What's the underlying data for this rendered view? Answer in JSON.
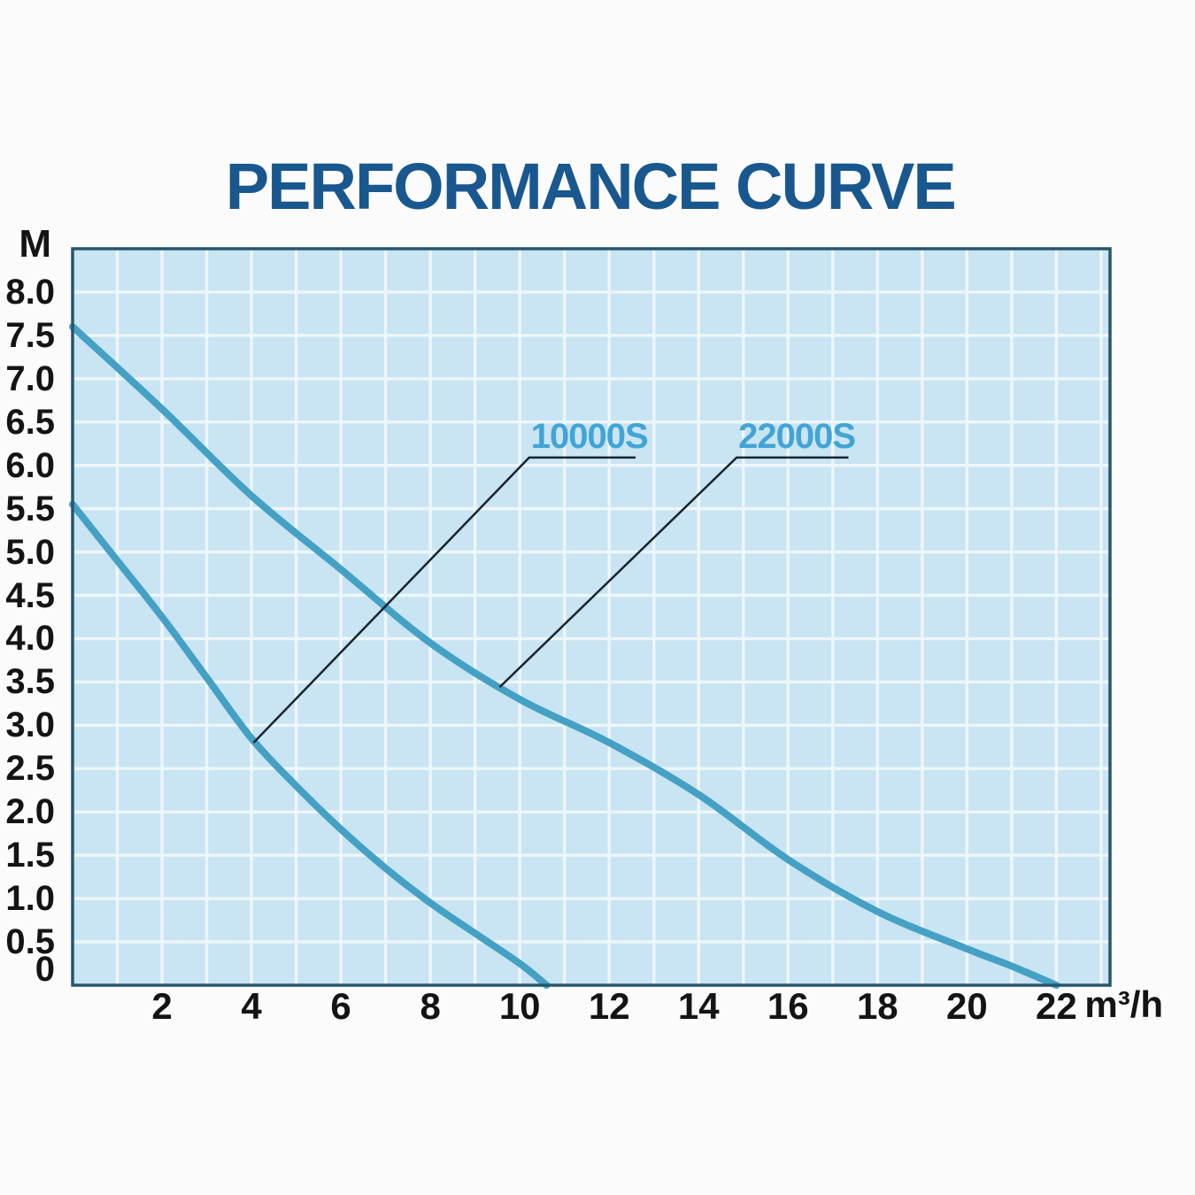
{
  "title": {
    "text": "PERFORMANCE CURVE",
    "color": "#19578f"
  },
  "chart_data": {
    "type": "line",
    "title": "PERFORMANCE CURVE",
    "ylabel": "M",
    "x_unit": "m³/h",
    "x_range": [
      0,
      23.2
    ],
    "y_range": [
      0,
      8.5
    ],
    "x_grid_step": 1,
    "y_grid_step": 0.5,
    "grid": true,
    "legend_position": "inline-callouts",
    "x_ticks": [
      {
        "value": 2,
        "label": "2"
      },
      {
        "value": 4,
        "label": "4"
      },
      {
        "value": 6,
        "label": "6"
      },
      {
        "value": 8,
        "label": "8"
      },
      {
        "value": 10,
        "label": "10"
      },
      {
        "value": 12,
        "label": "12"
      },
      {
        "value": 14,
        "label": "14"
      },
      {
        "value": 16,
        "label": "16"
      },
      {
        "value": 18,
        "label": "18"
      },
      {
        "value": 20,
        "label": "20"
      },
      {
        "value": 22,
        "label": "22"
      }
    ],
    "y_ticks": [
      {
        "value": 8.0,
        "label": "8.0"
      },
      {
        "value": 7.5,
        "label": "7.5"
      },
      {
        "value": 7.0,
        "label": "7.0"
      },
      {
        "value": 6.5,
        "label": "6.5"
      },
      {
        "value": 6.0,
        "label": "6.0"
      },
      {
        "value": 5.5,
        "label": "5.5"
      },
      {
        "value": 5.0,
        "label": "5.0"
      },
      {
        "value": 4.5,
        "label": "4.5"
      },
      {
        "value": 4.0,
        "label": "4.0"
      },
      {
        "value": 3.5,
        "label": "3.5"
      },
      {
        "value": 3.0,
        "label": "3.0"
      },
      {
        "value": 2.5,
        "label": "2.5"
      },
      {
        "value": 2.0,
        "label": "2.0"
      },
      {
        "value": 1.5,
        "label": "1.5"
      },
      {
        "value": 1.0,
        "label": "1.0"
      },
      {
        "value": 0.5,
        "label": "0.5"
      },
      {
        "value": 0,
        "label": "0"
      }
    ],
    "series": [
      {
        "name": "10000S",
        "points": [
          [
            0,
            5.55
          ],
          [
            1,
            4.9
          ],
          [
            2,
            4.25
          ],
          [
            3,
            3.55
          ],
          [
            4,
            2.85
          ],
          [
            5,
            2.3
          ],
          [
            6,
            1.8
          ],
          [
            7,
            1.35
          ],
          [
            8,
            0.95
          ],
          [
            9,
            0.6
          ],
          [
            10,
            0.25
          ],
          [
            10.6,
            0
          ]
        ]
      },
      {
        "name": "22000S",
        "points": [
          [
            0,
            7.6
          ],
          [
            2,
            6.65
          ],
          [
            4,
            5.65
          ],
          [
            6,
            4.8
          ],
          [
            8,
            3.95
          ],
          [
            10,
            3.3
          ],
          [
            12,
            2.8
          ],
          [
            14,
            2.2
          ],
          [
            16,
            1.45
          ],
          [
            18,
            0.85
          ],
          [
            20,
            0.42
          ],
          [
            21,
            0.22
          ],
          [
            22,
            0
          ]
        ]
      }
    ],
    "annotations": [
      {
        "label": "10000S",
        "attach": [
          4.05,
          2.8
        ],
        "elbow": [
          10.21,
          6.09
        ],
        "end": [
          12.59,
          6.09
        ]
      },
      {
        "label": "22000S",
        "attach": [
          9.55,
          3.44
        ],
        "elbow": [
          14.85,
          6.09
        ],
        "end": [
          17.35,
          6.09
        ]
      }
    ],
    "colors": {
      "plot_bg": "#c9e4f2",
      "grid": "#edf6fa",
      "border": "#27566b",
      "curve": "#44a1c4",
      "callout": "#17242e",
      "series_label": "#42a4d6",
      "title": "#19578f"
    }
  }
}
